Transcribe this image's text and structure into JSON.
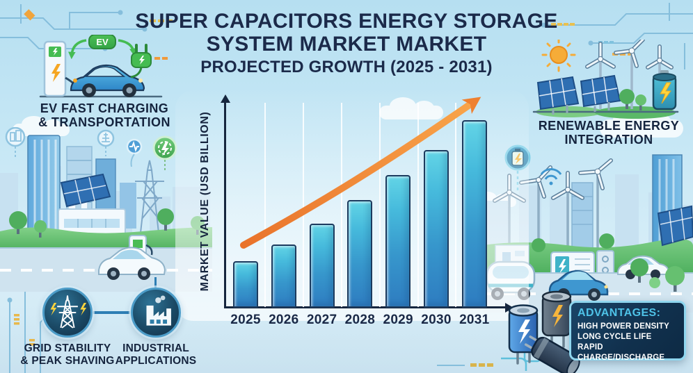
{
  "title": {
    "line1": "SUPER CAPACITORS ENERGY STORAGE",
    "line2": "SYSTEM MARKET MARKET",
    "line3": "PROJECTED GROWTH (2025 - 2031)"
  },
  "sections": {
    "ev": {
      "label_line1": "EV FAST CHARGING",
      "label_line2": "& TRANSPORTATION",
      "badge": "EV"
    },
    "renewable": {
      "label_line1": "RENEWABLE ENERGY",
      "label_line2": "INTEGRATION"
    },
    "grid_stability": {
      "label_line1": "GRID STABILITY",
      "label_line2": "& PEAK SHAVING"
    },
    "industrial": {
      "label_line1": "INDUSTRIAL",
      "label_line2": "APPLICATIONS"
    }
  },
  "advantages": {
    "heading": "ADVANTAGES:",
    "items": [
      "HIGH POWER DENSITY",
      "LONG CYCLE LIFE",
      "RAPID CHARGE/DISCHARGE"
    ]
  },
  "chart_data": {
    "type": "bar",
    "categories": [
      "2025",
      "2026",
      "2027",
      "2028",
      "2029",
      "2030",
      "2031"
    ],
    "values": [
      22,
      30,
      40,
      51,
      63,
      75,
      89
    ],
    "values_note": "relative bar heights as % of y-axis; no numeric scale shown in image",
    "title": "Super Capacitors Energy Storage System Market — Projected Growth (2025 - 2031)",
    "xlabel": "",
    "ylabel": "MARKET VALUE (USD BILLION)",
    "ylim": [
      0,
      100
    ],
    "grid": "light vertical gridlines between bars",
    "legend": "none",
    "trend": "orange upward curved arrow overlay",
    "bar_color_top": "#4FC8E0",
    "bar_color_bottom": "#2E7CC0"
  },
  "colors": {
    "background_top": "#B6DFF1",
    "background_bottom": "#CFE7F3",
    "title_navy": "#1B2A4A",
    "accent_orange": "#F08A36",
    "accent_green": "#43B44E",
    "advantages_bg": "#11314E",
    "advantages_border": "#8FD6EE",
    "advantages_heading": "#4FC3E8"
  }
}
